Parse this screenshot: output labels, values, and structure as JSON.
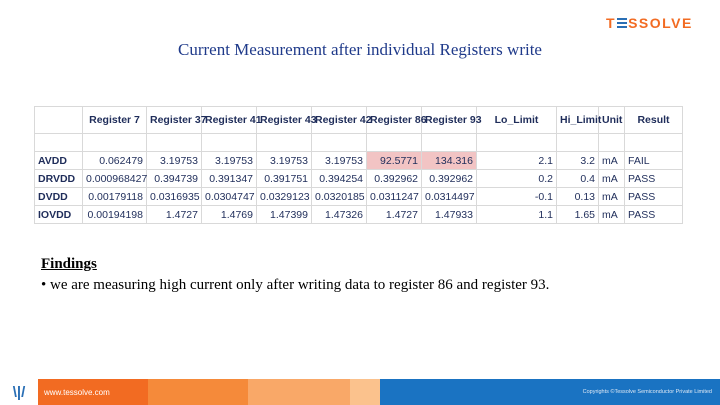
{
  "logo": {
    "first": "T",
    "rest": "SSOLVE"
  },
  "title": "Current Measurement after individual Registers write",
  "table": {
    "headers": [
      "",
      "Register 7",
      "Register 37",
      "Register 41",
      "Register 43",
      "Register 42",
      "Register 86",
      "Register 93",
      "Lo_Limit",
      "Hi_Limit",
      "Unit",
      "Result"
    ],
    "rows": [
      {
        "label": "AVDD",
        "values": [
          "0.062479",
          "3.19753",
          "3.19753",
          "3.19753",
          "3.19753",
          "92.5771",
          "134.316"
        ],
        "lo": "2.1",
        "hi": "3.2",
        "unit": "mA",
        "result": "FAIL"
      },
      {
        "label": "DRVDD",
        "values": [
          "0.000968427",
          "0.394739",
          "0.391347",
          "0.391751",
          "0.394254",
          "0.392962",
          "0.392962"
        ],
        "lo": "0.2",
        "hi": "0.4",
        "unit": "mA",
        "result": "PASS"
      },
      {
        "label": "DVDD",
        "values": [
          "0.00179118",
          "0.0316935",
          "0.0304747",
          "0.0329123",
          "0.0320185",
          "0.0311247",
          "0.0314497"
        ],
        "lo": "-0.1",
        "hi": "0.13",
        "unit": "mA",
        "result": "PASS"
      },
      {
        "label": "IOVDD",
        "values": [
          "0.00194198",
          "1.4727",
          "1.4769",
          "1.47399",
          "1.47326",
          "1.4727",
          "1.47933"
        ],
        "lo": "1.1",
        "hi": "1.65",
        "unit": "mA",
        "result": "PASS"
      }
    ],
    "highlight_color": "#f2c4c4"
  },
  "findings": {
    "heading": "Findings",
    "bullet": "• we are measuring high current only after writing data to register 86 and register 93."
  },
  "footer": {
    "website": "www.tessolve.com",
    "copyright": "Copyrights ©Tessolve Semiconductor Private Limited"
  },
  "colors": {
    "brand_orange": "#f26b22",
    "brand_blue": "#1a73c2",
    "title_blue": "#1f3a8a"
  }
}
